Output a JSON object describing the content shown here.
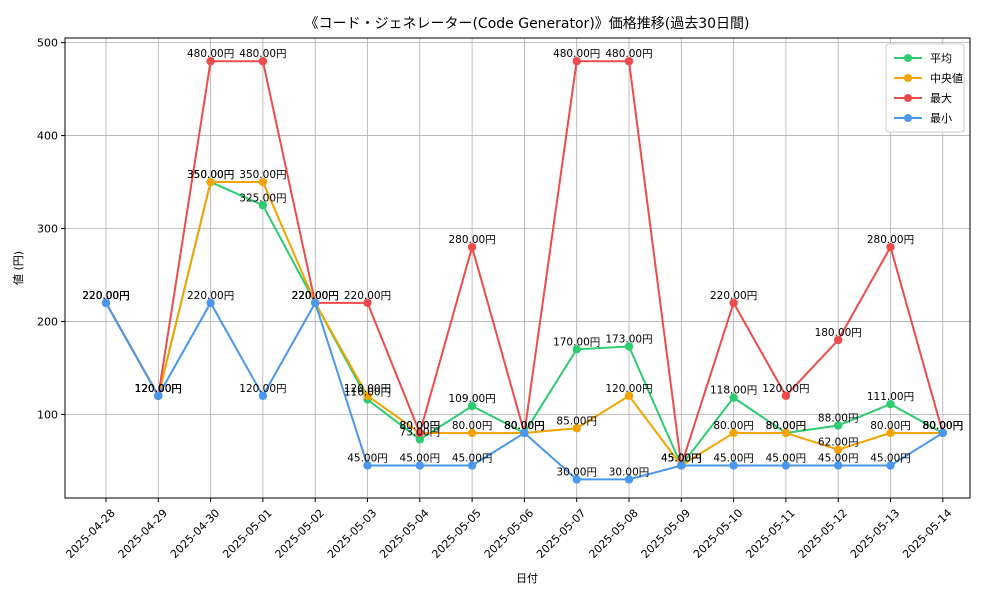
{
  "chart_data": {
    "type": "line",
    "title": "《コード・ジェネレーター(Code Generator)》価格推移(過去30日間)",
    "xlabel": "日付",
    "ylabel": "値 (円)",
    "ylim": [
      10,
      505
    ],
    "yticks": [
      100,
      200,
      300,
      400,
      500
    ],
    "grid": true,
    "legend_position": "top-right",
    "label_suffix": "円",
    "categories": [
      "2025-04-28",
      "2025-04-29",
      "2025-04-30",
      "2025-05-01",
      "2025-05-02",
      "2025-05-03",
      "2025-05-04",
      "2025-05-05",
      "2025-05-06",
      "2025-05-07",
      "2025-05-08",
      "2025-05-09",
      "2025-05-10",
      "2025-05-11",
      "2025-05-12",
      "2025-05-13",
      "2025-05-14"
    ],
    "series": [
      {
        "name": "平均",
        "color": "#2ecc71",
        "values": [
          220,
          120,
          350,
          325,
          220,
          116,
          73,
          109,
          80,
          170,
          173,
          45,
          118,
          80,
          88,
          111,
          80
        ]
      },
      {
        "name": "中央値",
        "color": "#f5a300",
        "values": [
          220,
          120,
          350,
          350,
          220,
          120,
          80,
          80,
          80,
          85,
          120,
          45,
          80,
          80,
          62,
          80,
          80
        ]
      },
      {
        "name": "最大",
        "color": "#ef4b4b",
        "values": [
          220,
          120,
          480,
          480,
          220,
          220,
          80,
          280,
          80,
          480,
          480,
          45,
          220,
          120,
          180,
          280,
          80
        ]
      },
      {
        "name": "最小",
        "color": "#4a97f0",
        "values": [
          220,
          120,
          220,
          120,
          220,
          45,
          45,
          45,
          80,
          30,
          30,
          45,
          45,
          45,
          45,
          45,
          80
        ]
      }
    ]
  }
}
